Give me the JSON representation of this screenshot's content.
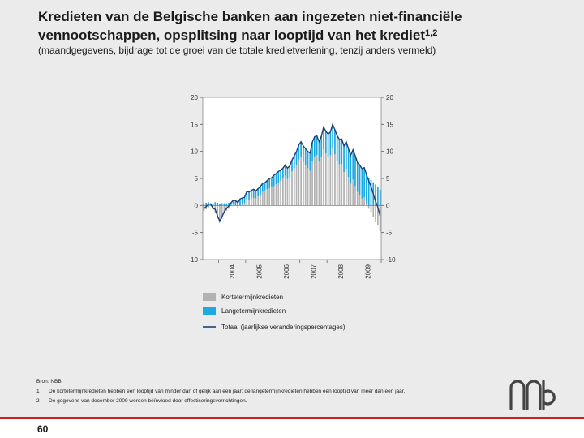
{
  "page": {
    "title": "Kredieten van de Belgische banken aan ingezeten niet-financiële vennootschappen, opsplitsing naar looptijd van het krediet",
    "title_sup": "1,2",
    "subtitle": "(maandgegevens, bijdrage tot de groei van de totale kredietverlening, tenzij anders vermeld)",
    "source": "Bron: NBB.",
    "footnotes": [
      {
        "mark": "1",
        "text": "De kortetermijnkredieten hebben een looptijd van minder dan of gelijk aan een jaar; de langetermijnkredieten hebben een looptijd van meer dan een jaar."
      },
      {
        "mark": "2",
        "text": "De gegevens van december 2009 werden beïnvloed door effectiseringsverrichtingen."
      }
    ],
    "page_number": "60"
  },
  "colors": {
    "short_term": "#b2b2b2",
    "long_term": "#1fa9e1",
    "total": "#1f3f73",
    "accent": "#d21e1e"
  },
  "chart_data": {
    "type": "bar",
    "stacked": true,
    "title": "",
    "xlabel": "",
    "ylabel": "",
    "ylim": [
      -10,
      20
    ],
    "yticks": [
      -10,
      -5,
      0,
      5,
      10,
      15,
      20
    ],
    "years": [
      "2004",
      "2005",
      "2006",
      "2007",
      "2008",
      "2009"
    ],
    "x_start": "2003-06",
    "months_count": 79,
    "legend": [
      "Kortetermijnkredieten",
      "Langetermijnkredieten",
      "Totaal (jaarlijkse veranderingspercentages)"
    ],
    "series": [
      {
        "name": "Kortetermijnkredieten",
        "type": "bar",
        "values": [
          -1,
          -0.7,
          -0.4,
          0,
          -0.8,
          -1.3,
          -2.4,
          -3.2,
          -2.5,
          -1.5,
          -1,
          -0.6,
          0,
          0.2,
          0,
          -0.4,
          0,
          0.3,
          0.5,
          1,
          1.1,
          1.2,
          1.4,
          1.3,
          1.7,
          1.9,
          2.5,
          2.8,
          3,
          3.2,
          3.3,
          3.6,
          3.9,
          4.1,
          4.6,
          5.1,
          5.5,
          4.9,
          5.3,
          6.3,
          6.9,
          7.5,
          8.5,
          9,
          8,
          7.4,
          6.9,
          6.4,
          8.2,
          9.1,
          9.3,
          8.1,
          8.9,
          10.4,
          9.6,
          8.9,
          9.3,
          10.6,
          9.5,
          8.3,
          7.6,
          7.7,
          6.2,
          6.8,
          5.3,
          4,
          4.8,
          3.6,
          2.5,
          1.9,
          1.3,
          1.5,
          0.3,
          -0.6,
          -1.2,
          -2.2,
          -3.1,
          -3.7,
          -4.8
        ]
      },
      {
        "name": "Langetermijnkredieten",
        "type": "bar",
        "values": [
          0.4,
          0.5,
          0.6,
          0.3,
          0.3,
          0.6,
          0.5,
          0.3,
          0.4,
          0.4,
          0.4,
          0.5,
          0.5,
          0.8,
          0.9,
          0.9,
          1.2,
          1.1,
          1,
          1.6,
          1.4,
          1.6,
          1.6,
          1.4,
          1.4,
          1.6,
          1.6,
          1.4,
          1.6,
          1.8,
          1.8,
          2,
          2,
          2.2,
          1.9,
          1.8,
          2,
          2,
          2,
          2.1,
          2.3,
          2.5,
          2.7,
          2.8,
          3,
          3.1,
          3.1,
          3.3,
          3.5,
          3.6,
          3.6,
          3.7,
          3.9,
          4.1,
          4.1,
          4.3,
          4.3,
          4.4,
          4.5,
          4.6,
          4.6,
          4.6,
          4.8,
          5,
          5.2,
          5.3,
          5.5,
          5.6,
          5.4,
          5.6,
          5.5,
          5.5,
          5.4,
          5.1,
          4.7,
          4.3,
          3.9,
          3.4,
          2.9
        ]
      },
      {
        "name": "Totaal (jaarlijkse veranderingspercentages)",
        "type": "line",
        "values": [
          -0.6,
          -0.2,
          0.2,
          0.3,
          -0.5,
          -0.7,
          -1.9,
          -2.9,
          -2.1,
          -1.1,
          -0.6,
          -0.1,
          0.5,
          1,
          0.9,
          0.5,
          1.2,
          1.4,
          1.5,
          2.6,
          2.5,
          2.8,
          3,
          2.7,
          3.1,
          3.5,
          4.1,
          4.2,
          4.6,
          5,
          5.1,
          5.6,
          5.9,
          6.3,
          6.5,
          6.9,
          7.5,
          6.9,
          7.3,
          8.4,
          9.2,
          10,
          11.2,
          11.8,
          11,
          10.5,
          10,
          9.7,
          11.7,
          12.7,
          12.9,
          11.8,
          12.8,
          14.5,
          13.7,
          13.2,
          13.6,
          15,
          14,
          12.9,
          12.2,
          12.3,
          11,
          11.8,
          10.5,
          9.3,
          10.3,
          9.2,
          7.9,
          7.5,
          6.8,
          7,
          5.7,
          4.5,
          3.5,
          2.1,
          0.8,
          -0.3,
          -1.9
        ]
      }
    ]
  }
}
